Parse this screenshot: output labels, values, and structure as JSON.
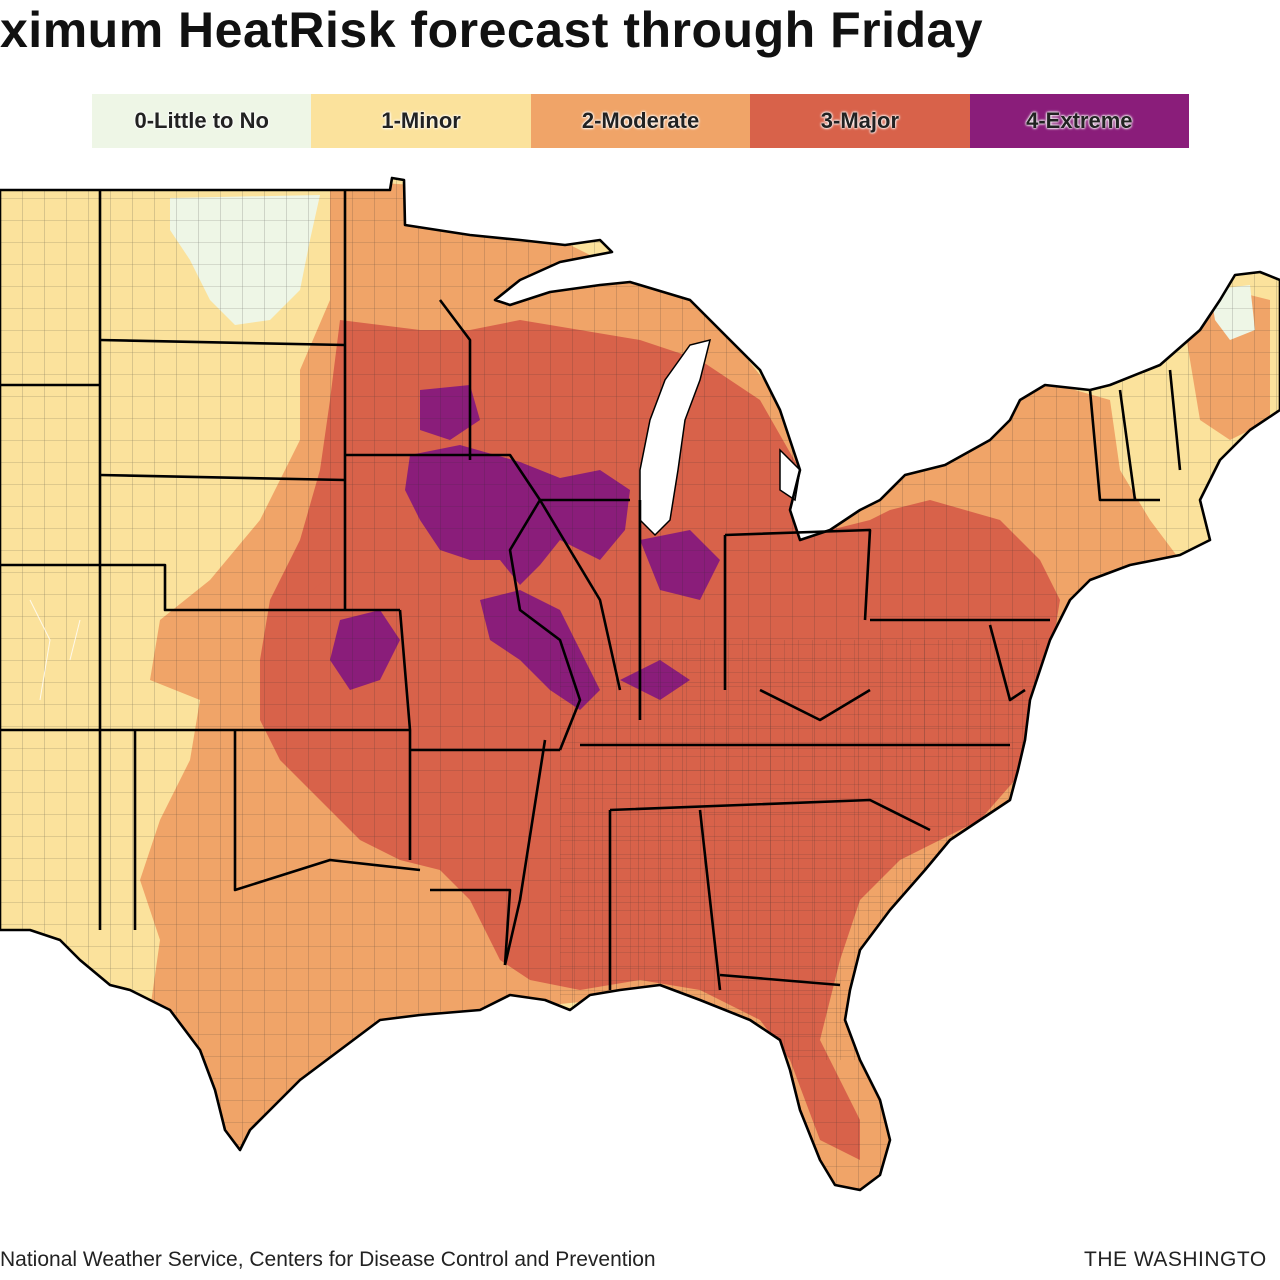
{
  "title": "ximum HeatRisk forecast through Friday",
  "legend": {
    "items": [
      {
        "label": "0-Little to No",
        "color": "#eef6e6"
      },
      {
        "label": "1-Minor",
        "color": "#fbe29c"
      },
      {
        "label": "2-Moderate",
        "color": "#f0a468"
      },
      {
        "label": "3-Major",
        "color": "#d8624a"
      },
      {
        "label": "4-Extreme",
        "color": "#8a1d7a"
      }
    ]
  },
  "colors": {
    "state_border": "#000000",
    "county_border": "#222222",
    "water": "#ffffff"
  },
  "footer": {
    "source": "National Weather Service, Centers for Disease Control and Prevention",
    "credit": "THE WASHINGTO"
  }
}
